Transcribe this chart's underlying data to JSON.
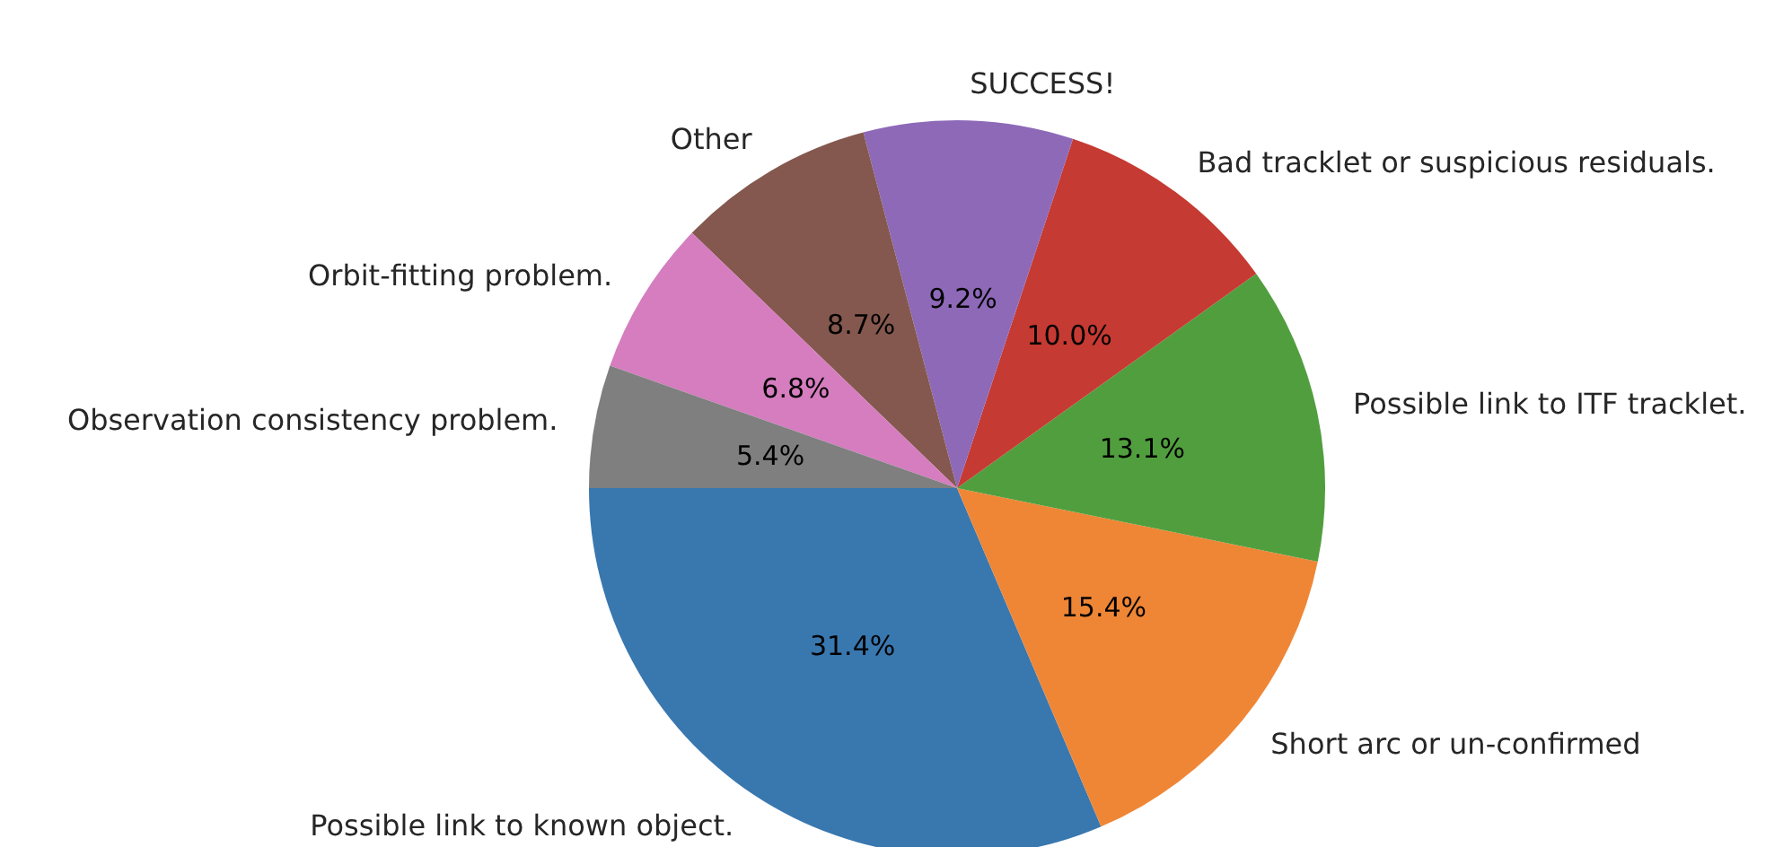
{
  "chart_data": {
    "type": "pie",
    "categories": [
      "Possible link to known object.",
      "Short arc or un-confirmed",
      "Possible link to ITF tracklet.",
      "Bad tracklet or suspicious residuals.",
      "SUCCESS!",
      "Other",
      "Orbit-fitting problem.",
      "Observation consistency problem."
    ],
    "values": [
      31.4,
      15.4,
      13.1,
      10.0,
      9.2,
      8.7,
      6.8,
      5.4
    ],
    "colors": [
      "#3977af",
      "#ef8636",
      "#519e3e",
      "#c53a32",
      "#8d69b8",
      "#84584e",
      "#d57dbf",
      "#7f7f7f"
    ],
    "value_labels": [
      "31.4%",
      "15.4%",
      "13.1%",
      "10.0%",
      "9.2%",
      "8.7%",
      "6.8%",
      "5.4%"
    ]
  }
}
